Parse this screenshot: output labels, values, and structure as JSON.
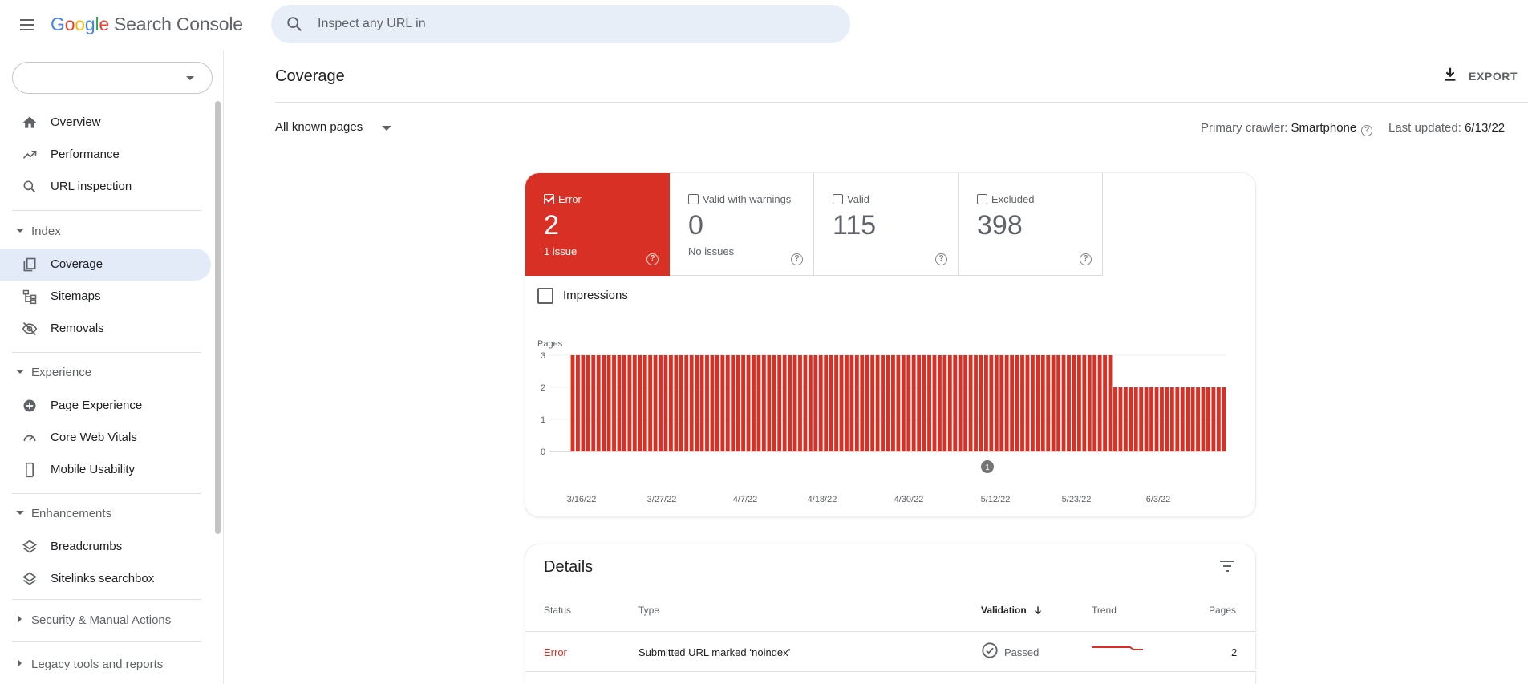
{
  "app": {
    "logo_google": "Google",
    "logo_product": "Search Console",
    "search_placeholder": "Inspect any URL in"
  },
  "sidebar": {
    "property_value": "",
    "items": [
      {
        "label": "Overview",
        "icon": "home-icon"
      },
      {
        "label": "Performance",
        "icon": "trending-up-icon"
      },
      {
        "label": "URL inspection",
        "icon": "search-icon"
      }
    ],
    "sections": [
      {
        "label": "Index",
        "expanded": true,
        "items": [
          {
            "label": "Coverage",
            "icon": "coverage-icon",
            "active": true
          },
          {
            "label": "Sitemaps",
            "icon": "sitemap-icon"
          },
          {
            "label": "Removals",
            "icon": "eye-off-icon"
          }
        ]
      },
      {
        "label": "Experience",
        "expanded": true,
        "items": [
          {
            "label": "Page Experience",
            "icon": "plus-circle-icon"
          },
          {
            "label": "Core Web Vitals",
            "icon": "gauge-icon"
          },
          {
            "label": "Mobile Usability",
            "icon": "phone-icon"
          }
        ]
      },
      {
        "label": "Enhancements",
        "expanded": true,
        "items": [
          {
            "label": "Breadcrumbs",
            "icon": "layers-icon"
          },
          {
            "label": "Sitelinks searchbox",
            "icon": "layers-icon"
          }
        ]
      },
      {
        "label": "Security & Manual Actions",
        "expanded": false
      },
      {
        "label": "Legacy tools and reports",
        "expanded": false
      }
    ]
  },
  "main": {
    "title": "Coverage",
    "export_label": "EXPORT",
    "filter_label": "All known pages",
    "crawler_label": "Primary crawler:",
    "crawler_value": "Smartphone",
    "updated_label": "Last updated:",
    "updated_value": "6/13/22"
  },
  "tiles": [
    {
      "name": "Error",
      "count": "2",
      "sub": "1 issue",
      "checked": true
    },
    {
      "name": "Valid with warnings",
      "count": "0",
      "sub": "No issues",
      "checked": false
    },
    {
      "name": "Valid",
      "count": "115",
      "sub": "",
      "checked": false
    },
    {
      "name": "Excluded",
      "count": "398",
      "sub": "",
      "checked": false
    }
  ],
  "impressions_label": "Impressions",
  "colors": {
    "error": "#d93025",
    "active_nav": "#e3ebf8",
    "search_bg": "#e8eef7"
  },
  "chart_data": {
    "type": "bar",
    "ylabel": "Pages",
    "ylim": [
      0,
      3
    ],
    "yticks": [
      0,
      1,
      2,
      3
    ],
    "x_tick_labels": [
      "3/16/22",
      "3/27/22",
      "4/7/22",
      "4/18/22",
      "4/30/22",
      "5/12/22",
      "5/23/22",
      "6/3/22"
    ],
    "series": [
      {
        "values": [
          0,
          0,
          0,
          0,
          3,
          3,
          3,
          3,
          3,
          3,
          3,
          3,
          3,
          3,
          3,
          3,
          3,
          3,
          3,
          3,
          3,
          3,
          3,
          3,
          3,
          3,
          3,
          3,
          3,
          3,
          3,
          3,
          3,
          3,
          3,
          3,
          3,
          3,
          3,
          3,
          3,
          3,
          3,
          3,
          3,
          3,
          3,
          3,
          3,
          3,
          3,
          3,
          3,
          3,
          3,
          3,
          3,
          3,
          3,
          3,
          3,
          3,
          3,
          3,
          3,
          3,
          3,
          3,
          3,
          3,
          3,
          3,
          3,
          3,
          3,
          3,
          3,
          3,
          3,
          3,
          3,
          3,
          3,
          3,
          3,
          3,
          3,
          3,
          3,
          3,
          3,
          3,
          3,
          3,
          3,
          3,
          3,
          3,
          3,
          3,
          3,
          3,
          3,
          3,
          3,
          3,
          3,
          3,
          3,
          2,
          2,
          2,
          2,
          2,
          2,
          2,
          2,
          2,
          2,
          2,
          2,
          2,
          2,
          2,
          2,
          2,
          2,
          2,
          2,
          2,
          2
        ]
      }
    ],
    "annotations": [
      {
        "x": "5/12/22",
        "label": "1"
      }
    ]
  },
  "details": {
    "title": "Details",
    "columns": [
      "Status",
      "Type",
      "Validation",
      "Trend",
      "Pages"
    ],
    "rows": [
      {
        "status": "Error",
        "type": "Submitted URL marked ‘noindex’",
        "validation": "Passed",
        "pages": "2"
      }
    ]
  }
}
